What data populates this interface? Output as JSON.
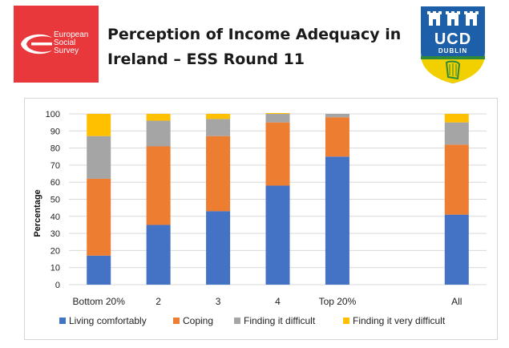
{
  "header": {
    "title_line1": "Perception of Income Adequacy in",
    "title_line2": "Ireland – ESS Round 11"
  },
  "ess_logo": {
    "line1": "European",
    "line2": "Social",
    "line3": "Survey",
    "color": "#e8383c"
  },
  "ucd_logo": {
    "name": "UCD",
    "subtitle": "DUBLIN",
    "shield_color": "#1d5fa8",
    "lower_color": "#f2d000"
  },
  "chart_data": {
    "type": "bar",
    "stacked": true,
    "categories": [
      "Bottom 20%",
      "2",
      "3",
      "4",
      "Top 20%",
      "",
      "All"
    ],
    "series": [
      {
        "name": "Living comfortably",
        "color": "#4472c4",
        "values": [
          17,
          35,
          43,
          58,
          75,
          null,
          41
        ]
      },
      {
        "name": "Coping",
        "color": "#ed7d31",
        "values": [
          45,
          46,
          44,
          37,
          23,
          null,
          41
        ]
      },
      {
        "name": "Finding it difficult",
        "color": "#a5a5a5",
        "values": [
          25,
          15,
          10,
          5,
          2,
          null,
          13
        ]
      },
      {
        "name": "Finding it very difficult",
        "color": "#ffc000",
        "values": [
          13,
          4,
          3,
          0.5,
          0,
          null,
          5
        ]
      }
    ],
    "ylabel": "Percentage",
    "ylim": [
      0,
      100
    ],
    "yticks": [
      0,
      10,
      20,
      30,
      40,
      50,
      60,
      70,
      80,
      90,
      100
    ],
    "grid": true,
    "legend_position": "bottom"
  }
}
